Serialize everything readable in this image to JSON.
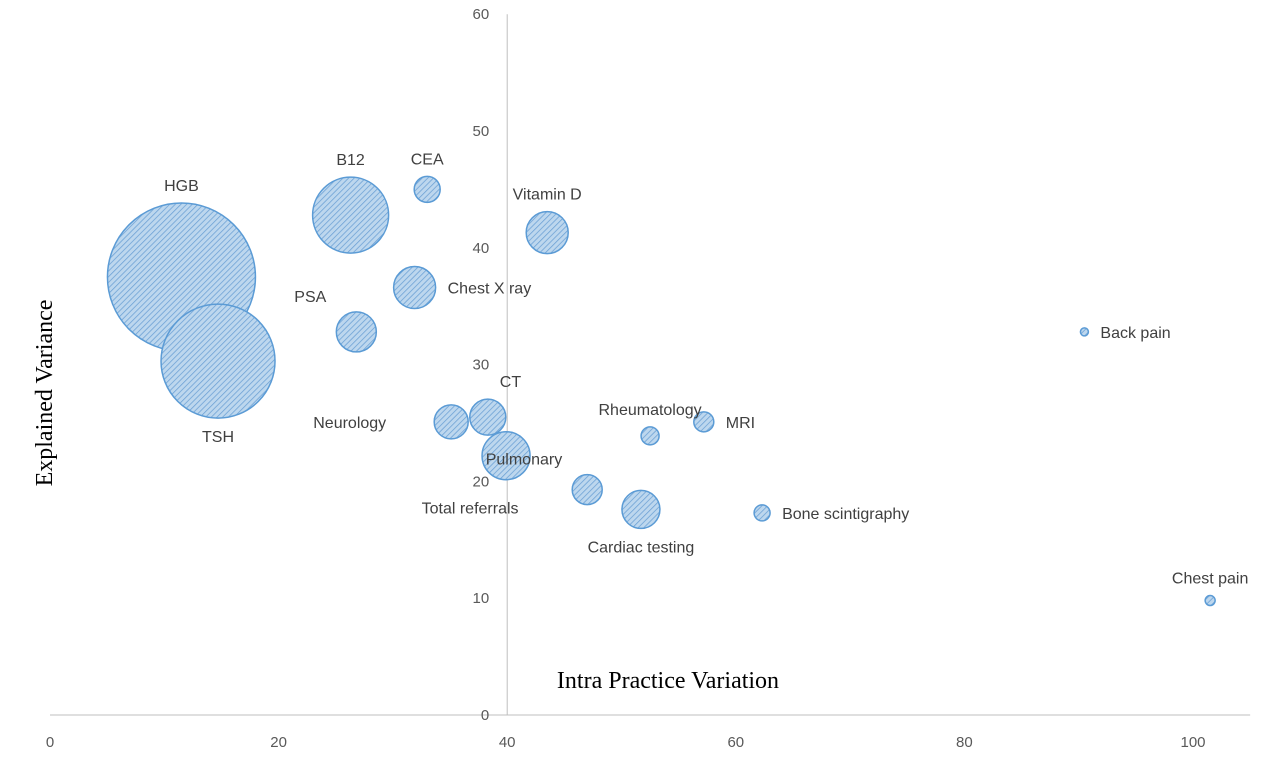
{
  "chart_data": {
    "type": "bubble",
    "title": "",
    "xlabel": "Intra Practice Variation",
    "ylabel": "Explained Variance",
    "xlim": [
      0,
      105
    ],
    "ylim": [
      0,
      60
    ],
    "x_ticks": [
      "0",
      "20",
      "40",
      "60",
      "80",
      "100"
    ],
    "y_ticks": [
      "0",
      "10",
      "20",
      "30",
      "40",
      "50",
      "60"
    ],
    "grid": false,
    "legend": "none",
    "colors": {
      "fill": "#bdd7ee",
      "hatch": "#6a9fd4",
      "stroke": "#5b9bd5",
      "axis": "#bfbfbf"
    },
    "points": [
      {
        "label": "HGB",
        "x": 11.5,
        "y": 37.5,
        "size": 74,
        "label_pos": "above"
      },
      {
        "label": "TSH",
        "x": 14.7,
        "y": 30.3,
        "size": 57,
        "label_pos": "below"
      },
      {
        "label": "B12",
        "x": 26.3,
        "y": 42.8,
        "size": 38,
        "label_pos": "above"
      },
      {
        "label": "CEA",
        "x": 33.0,
        "y": 45.0,
        "size": 13,
        "label_pos": "above"
      },
      {
        "label": "Vitamin D",
        "x": 43.5,
        "y": 41.3,
        "size": 21,
        "label_pos": "above"
      },
      {
        "label": "Chest X ray",
        "x": 31.9,
        "y": 36.6,
        "size": 21,
        "label_pos": "right"
      },
      {
        "label": "PSA",
        "x": 26.8,
        "y": 32.8,
        "size": 20,
        "label_pos": "above-left"
      },
      {
        "label": "Neurology",
        "x": 35.1,
        "y": 25.1,
        "size": 17,
        "label_pos": "left"
      },
      {
        "label": "CT",
        "x": 38.3,
        "y": 25.5,
        "size": 18,
        "label_pos": "above-right"
      },
      {
        "label": "Total referrals",
        "x": 39.9,
        "y": 22.2,
        "size": 24,
        "label_pos": "below-left"
      },
      {
        "label": "Pulmonary",
        "x": 47.0,
        "y": 19.3,
        "size": 15,
        "label_pos": "above-left"
      },
      {
        "label": "Cardiac testing",
        "x": 51.7,
        "y": 17.6,
        "size": 19,
        "label_pos": "below"
      },
      {
        "label": "Rheumatology",
        "x": 52.5,
        "y": 23.9,
        "size": 9,
        "label_pos": "above"
      },
      {
        "label": "MRI",
        "x": 57.2,
        "y": 25.1,
        "size": 10,
        "label_pos": "right"
      },
      {
        "label": "Bone scintigraphy",
        "x": 62.3,
        "y": 17.3,
        "size": 8,
        "label_pos": "right"
      },
      {
        "label": "Back pain",
        "x": 90.5,
        "y": 32.8,
        "size": 4,
        "label_pos": "right"
      },
      {
        "label": "Chest pain",
        "x": 101.5,
        "y": 9.8,
        "size": 5,
        "label_pos": "above"
      }
    ]
  }
}
